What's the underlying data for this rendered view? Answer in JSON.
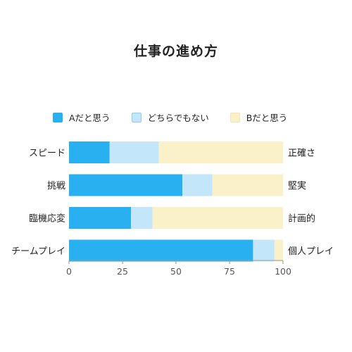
{
  "title": "仕事の進め方",
  "legend": [
    {
      "label": "Aだと思う",
      "color": "#29B0F0"
    },
    {
      "label": "どちらでもない",
      "color": "#C3E6FB"
    },
    {
      "label": "Bだと思う",
      "color": "#FBF1C9"
    }
  ],
  "chart_data": {
    "type": "bar",
    "orientation": "horizontal",
    "stacked": true,
    "title": "仕事の進め方",
    "categories": [
      "スピード",
      "挑戦",
      "臨機応変",
      "チームプレイ"
    ],
    "right_labels": [
      "正確さ",
      "堅実",
      "計画的",
      "個人プレイ"
    ],
    "series": [
      {
        "name": "Aだと思う",
        "values": [
          19,
          53,
          29,
          86
        ],
        "color": "#29B0F0"
      },
      {
        "name": "どちらでもない",
        "values": [
          23,
          14,
          10,
          10
        ],
        "color": "#C3E6FB"
      },
      {
        "name": "Bだと思う",
        "values": [
          58,
          33,
          61,
          4
        ],
        "color": "#FBF1C9"
      }
    ],
    "xlim": [
      0,
      100
    ],
    "xticks": [
      "0",
      "25",
      "50",
      "75",
      "100"
    ],
    "grid": false,
    "legend_position": "top"
  }
}
